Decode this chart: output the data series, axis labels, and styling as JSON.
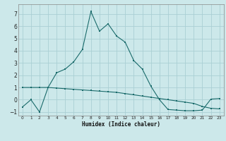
{
  "xlabel": "Humidex (Indice chaleur)",
  "xlim": [
    -0.5,
    23.5
  ],
  "ylim": [
    -1.3,
    7.8
  ],
  "background_color": "#cce8ea",
  "grid_color": "#aacfd4",
  "line_color": "#1a6b6b",
  "xticks": [
    0,
    1,
    2,
    3,
    4,
    5,
    6,
    7,
    8,
    9,
    10,
    11,
    12,
    13,
    14,
    15,
    16,
    17,
    18,
    19,
    20,
    21,
    22,
    23
  ],
  "yticks": [
    -1,
    0,
    1,
    2,
    3,
    4,
    5,
    6,
    7
  ],
  "line1_x": [
    0,
    1,
    2,
    3,
    4,
    5,
    6,
    7,
    8,
    9,
    10,
    11,
    12,
    13,
    14,
    15,
    16,
    17,
    18,
    19,
    20,
    21,
    22,
    23
  ],
  "line1_y": [
    -0.6,
    0.0,
    -1.0,
    1.0,
    2.2,
    2.5,
    3.1,
    4.1,
    7.2,
    5.6,
    6.2,
    5.2,
    4.7,
    3.2,
    2.5,
    1.1,
    0.0,
    -0.8,
    -0.85,
    -0.9,
    -0.9,
    -0.85,
    0.05,
    0.1
  ],
  "line2_x": [
    0,
    1,
    2,
    3,
    4,
    5,
    6,
    7,
    8,
    9,
    10,
    11,
    12,
    13,
    14,
    15,
    16,
    17,
    18,
    19,
    20,
    21,
    22,
    23
  ],
  "line2_y": [
    1.0,
    1.0,
    1.0,
    1.0,
    0.95,
    0.9,
    0.85,
    0.8,
    0.75,
    0.7,
    0.65,
    0.6,
    0.5,
    0.4,
    0.3,
    0.2,
    0.1,
    0.0,
    -0.1,
    -0.2,
    -0.3,
    -0.55,
    -0.7,
    -0.75
  ]
}
